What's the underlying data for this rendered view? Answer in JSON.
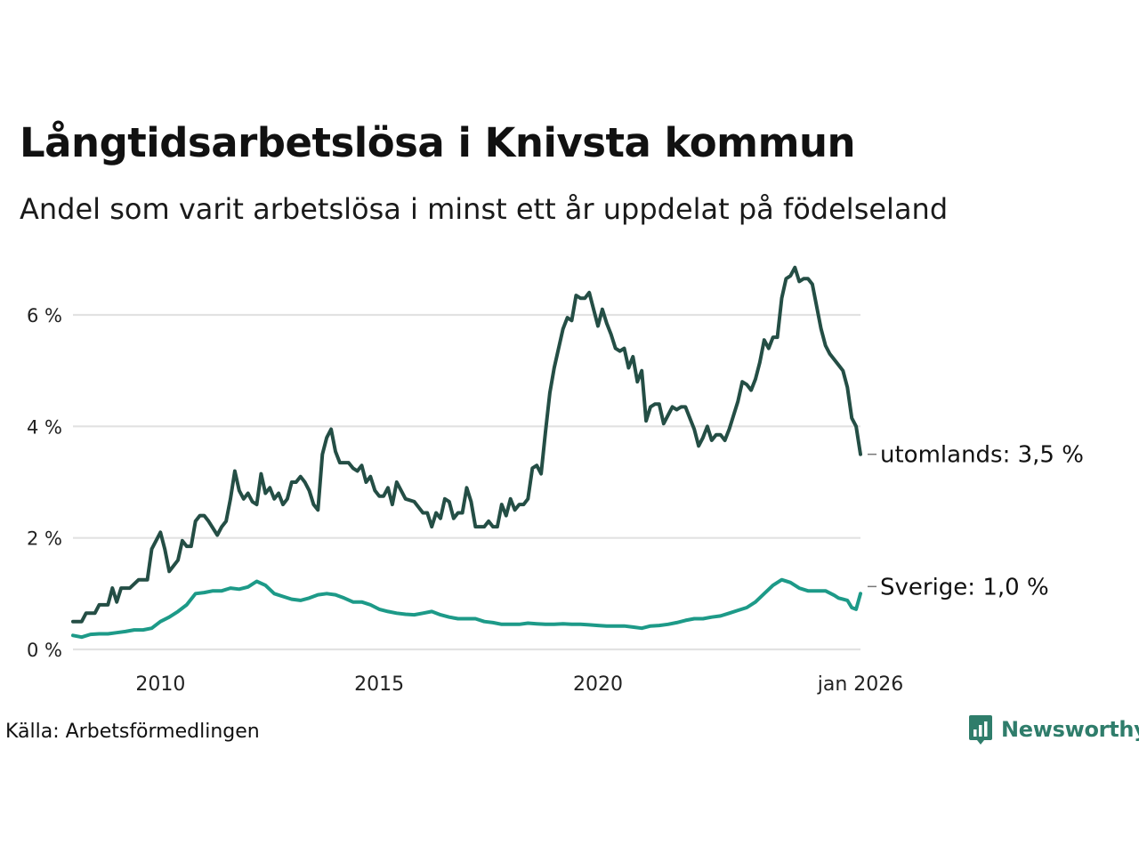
{
  "header": {
    "title": "Långtidsarbetslösa i Knivsta kommun",
    "subtitle": "Andel som varit arbetslösa i minst ett år uppdelat på födelseland"
  },
  "footer": {
    "source": "Källa: Arbetsförmedlingen",
    "brand": "Newsworthy"
  },
  "colors": {
    "utomlands": "#244e45",
    "sverige": "#1d9a88",
    "grid": "#e2e2e2",
    "brand": "#2f7d6b"
  },
  "chart_data": {
    "type": "line",
    "title": "Långtidsarbetslösa i Knivsta kommun",
    "subtitle": "Andel som varit arbetslösa i minst ett år uppdelat på födelseland",
    "xlabel": "",
    "ylabel": "",
    "x_range": [
      2008.0,
      2026.0
    ],
    "ylim": [
      0,
      7
    ],
    "y_ticks": [
      0,
      2,
      4,
      6
    ],
    "y_tick_labels": [
      "0 %",
      "2 %",
      "4 %",
      "6 %"
    ],
    "x_ticks": [
      2010,
      2015,
      2020,
      2026.0
    ],
    "x_tick_labels": [
      "2010",
      "2015",
      "2020",
      "jan 2026"
    ],
    "grid": true,
    "series": [
      {
        "name": "utomlands",
        "end_label": "utomlands: 3,5 %",
        "points": [
          [
            2008.0,
            0.5
          ],
          [
            2008.2,
            0.5
          ],
          [
            2008.3,
            0.65
          ],
          [
            2008.5,
            0.65
          ],
          [
            2008.6,
            0.8
          ],
          [
            2008.8,
            0.8
          ],
          [
            2008.9,
            1.1
          ],
          [
            2009.0,
            0.85
          ],
          [
            2009.1,
            1.1
          ],
          [
            2009.3,
            1.1
          ],
          [
            2009.5,
            1.25
          ],
          [
            2009.7,
            1.25
          ],
          [
            2009.8,
            1.8
          ],
          [
            2010.0,
            2.1
          ],
          [
            2010.1,
            1.8
          ],
          [
            2010.2,
            1.4
          ],
          [
            2010.3,
            1.5
          ],
          [
            2010.4,
            1.6
          ],
          [
            2010.5,
            1.95
          ],
          [
            2010.6,
            1.85
          ],
          [
            2010.7,
            1.85
          ],
          [
            2010.8,
            2.3
          ],
          [
            2010.9,
            2.4
          ],
          [
            2011.0,
            2.4
          ],
          [
            2011.1,
            2.3
          ],
          [
            2011.3,
            2.05
          ],
          [
            2011.4,
            2.2
          ],
          [
            2011.5,
            2.3
          ],
          [
            2011.6,
            2.7
          ],
          [
            2011.7,
            3.2
          ],
          [
            2011.8,
            2.85
          ],
          [
            2011.9,
            2.7
          ],
          [
            2012.0,
            2.8
          ],
          [
            2012.1,
            2.65
          ],
          [
            2012.2,
            2.6
          ],
          [
            2012.3,
            3.15
          ],
          [
            2012.4,
            2.8
          ],
          [
            2012.5,
            2.9
          ],
          [
            2012.6,
            2.7
          ],
          [
            2012.7,
            2.8
          ],
          [
            2012.8,
            2.6
          ],
          [
            2012.9,
            2.7
          ],
          [
            2013.0,
            3.0
          ],
          [
            2013.1,
            3.0
          ],
          [
            2013.2,
            3.1
          ],
          [
            2013.3,
            3.0
          ],
          [
            2013.4,
            2.85
          ],
          [
            2013.5,
            2.6
          ],
          [
            2013.6,
            2.5
          ],
          [
            2013.7,
            3.5
          ],
          [
            2013.8,
            3.8
          ],
          [
            2013.9,
            3.95
          ],
          [
            2014.0,
            3.55
          ],
          [
            2014.1,
            3.35
          ],
          [
            2014.3,
            3.35
          ],
          [
            2014.4,
            3.25
          ],
          [
            2014.5,
            3.2
          ],
          [
            2014.6,
            3.3
          ],
          [
            2014.7,
            3.0
          ],
          [
            2014.8,
            3.1
          ],
          [
            2014.9,
            2.85
          ],
          [
            2015.0,
            2.75
          ],
          [
            2015.1,
            2.75
          ],
          [
            2015.2,
            2.9
          ],
          [
            2015.3,
            2.6
          ],
          [
            2015.4,
            3.0
          ],
          [
            2015.5,
            2.85
          ],
          [
            2015.6,
            2.7
          ],
          [
            2015.8,
            2.65
          ],
          [
            2015.9,
            2.55
          ],
          [
            2016.0,
            2.45
          ],
          [
            2016.1,
            2.45
          ],
          [
            2016.2,
            2.2
          ],
          [
            2016.3,
            2.45
          ],
          [
            2016.4,
            2.35
          ],
          [
            2016.5,
            2.7
          ],
          [
            2016.6,
            2.65
          ],
          [
            2016.7,
            2.35
          ],
          [
            2016.8,
            2.45
          ],
          [
            2016.9,
            2.45
          ],
          [
            2017.0,
            2.9
          ],
          [
            2017.1,
            2.65
          ],
          [
            2017.2,
            2.2
          ],
          [
            2017.4,
            2.2
          ],
          [
            2017.5,
            2.3
          ],
          [
            2017.6,
            2.2
          ],
          [
            2017.7,
            2.2
          ],
          [
            2017.8,
            2.6
          ],
          [
            2017.9,
            2.4
          ],
          [
            2018.0,
            2.7
          ],
          [
            2018.1,
            2.5
          ],
          [
            2018.2,
            2.6
          ],
          [
            2018.3,
            2.6
          ],
          [
            2018.4,
            2.7
          ],
          [
            2018.5,
            3.25
          ],
          [
            2018.6,
            3.3
          ],
          [
            2018.7,
            3.15
          ],
          [
            2018.8,
            3.9
          ],
          [
            2018.9,
            4.6
          ],
          [
            2019.0,
            5.05
          ],
          [
            2019.2,
            5.75
          ],
          [
            2019.3,
            5.95
          ],
          [
            2019.4,
            5.9
          ],
          [
            2019.5,
            6.35
          ],
          [
            2019.6,
            6.3
          ],
          [
            2019.7,
            6.3
          ],
          [
            2019.8,
            6.4
          ],
          [
            2019.9,
            6.1
          ],
          [
            2020.0,
            5.8
          ],
          [
            2020.1,
            6.1
          ],
          [
            2020.2,
            5.85
          ],
          [
            2020.3,
            5.65
          ],
          [
            2020.4,
            5.4
          ],
          [
            2020.5,
            5.35
          ],
          [
            2020.6,
            5.4
          ],
          [
            2020.7,
            5.05
          ],
          [
            2020.8,
            5.25
          ],
          [
            2020.9,
            4.8
          ],
          [
            2021.0,
            5.0
          ],
          [
            2021.1,
            4.1
          ],
          [
            2021.2,
            4.35
          ],
          [
            2021.3,
            4.4
          ],
          [
            2021.4,
            4.4
          ],
          [
            2021.5,
            4.05
          ],
          [
            2021.6,
            4.2
          ],
          [
            2021.7,
            4.35
          ],
          [
            2021.8,
            4.3
          ],
          [
            2021.9,
            4.35
          ],
          [
            2022.0,
            4.35
          ],
          [
            2022.1,
            4.15
          ],
          [
            2022.2,
            3.95
          ],
          [
            2022.3,
            3.65
          ],
          [
            2022.4,
            3.8
          ],
          [
            2022.5,
            4.0
          ],
          [
            2022.6,
            3.75
          ],
          [
            2022.7,
            3.85
          ],
          [
            2022.8,
            3.85
          ],
          [
            2022.9,
            3.75
          ],
          [
            2023.0,
            3.95
          ],
          [
            2023.1,
            4.2
          ],
          [
            2023.2,
            4.45
          ],
          [
            2023.3,
            4.8
          ],
          [
            2023.4,
            4.75
          ],
          [
            2023.5,
            4.65
          ],
          [
            2023.6,
            4.85
          ],
          [
            2023.7,
            5.15
          ],
          [
            2023.8,
            5.55
          ],
          [
            2023.9,
            5.4
          ],
          [
            2024.0,
            5.6
          ],
          [
            2024.1,
            5.6
          ],
          [
            2024.2,
            6.3
          ],
          [
            2024.3,
            6.65
          ],
          [
            2024.4,
            6.7
          ],
          [
            2024.5,
            6.85
          ],
          [
            2024.6,
            6.6
          ],
          [
            2024.7,
            6.65
          ],
          [
            2024.8,
            6.65
          ],
          [
            2024.9,
            6.55
          ],
          [
            2025.0,
            6.15
          ],
          [
            2025.1,
            5.75
          ],
          [
            2025.2,
            5.45
          ],
          [
            2025.3,
            5.3
          ],
          [
            2025.4,
            5.2
          ],
          [
            2025.5,
            5.1
          ],
          [
            2025.6,
            5.0
          ],
          [
            2025.7,
            4.7
          ],
          [
            2025.8,
            4.15
          ],
          [
            2025.9,
            4.0
          ],
          [
            2026.0,
            3.5
          ]
        ]
      },
      {
        "name": "Sverige",
        "end_label": "Sverige: 1,0 %",
        "points": [
          [
            2008.0,
            0.25
          ],
          [
            2008.2,
            0.22
          ],
          [
            2008.4,
            0.27
          ],
          [
            2008.6,
            0.28
          ],
          [
            2008.8,
            0.28
          ],
          [
            2009.0,
            0.3
          ],
          [
            2009.2,
            0.32
          ],
          [
            2009.4,
            0.35
          ],
          [
            2009.6,
            0.35
          ],
          [
            2009.8,
            0.38
          ],
          [
            2010.0,
            0.5
          ],
          [
            2010.2,
            0.58
          ],
          [
            2010.4,
            0.68
          ],
          [
            2010.6,
            0.8
          ],
          [
            2010.8,
            1.0
          ],
          [
            2011.0,
            1.02
          ],
          [
            2011.2,
            1.05
          ],
          [
            2011.4,
            1.05
          ],
          [
            2011.6,
            1.1
          ],
          [
            2011.8,
            1.08
          ],
          [
            2012.0,
            1.12
          ],
          [
            2012.2,
            1.22
          ],
          [
            2012.4,
            1.15
          ],
          [
            2012.6,
            1.0
          ],
          [
            2012.8,
            0.95
          ],
          [
            2013.0,
            0.9
          ],
          [
            2013.2,
            0.88
          ],
          [
            2013.4,
            0.92
          ],
          [
            2013.6,
            0.98
          ],
          [
            2013.8,
            1.0
          ],
          [
            2014.0,
            0.98
          ],
          [
            2014.2,
            0.92
          ],
          [
            2014.4,
            0.85
          ],
          [
            2014.6,
            0.85
          ],
          [
            2014.8,
            0.8
          ],
          [
            2015.0,
            0.72
          ],
          [
            2015.2,
            0.68
          ],
          [
            2015.4,
            0.65
          ],
          [
            2015.6,
            0.63
          ],
          [
            2015.8,
            0.62
          ],
          [
            2016.0,
            0.65
          ],
          [
            2016.2,
            0.68
          ],
          [
            2016.4,
            0.62
          ],
          [
            2016.6,
            0.58
          ],
          [
            2016.8,
            0.55
          ],
          [
            2017.0,
            0.55
          ],
          [
            2017.2,
            0.55
          ],
          [
            2017.4,
            0.5
          ],
          [
            2017.6,
            0.48
          ],
          [
            2017.8,
            0.45
          ],
          [
            2018.0,
            0.45
          ],
          [
            2018.2,
            0.45
          ],
          [
            2018.4,
            0.47
          ],
          [
            2018.6,
            0.46
          ],
          [
            2018.8,
            0.45
          ],
          [
            2019.0,
            0.45
          ],
          [
            2019.2,
            0.46
          ],
          [
            2019.4,
            0.45
          ],
          [
            2019.6,
            0.45
          ],
          [
            2019.8,
            0.44
          ],
          [
            2020.0,
            0.43
          ],
          [
            2020.2,
            0.42
          ],
          [
            2020.4,
            0.42
          ],
          [
            2020.6,
            0.42
          ],
          [
            2020.8,
            0.4
          ],
          [
            2021.0,
            0.38
          ],
          [
            2021.2,
            0.42
          ],
          [
            2021.4,
            0.43
          ],
          [
            2021.6,
            0.45
          ],
          [
            2021.8,
            0.48
          ],
          [
            2022.0,
            0.52
          ],
          [
            2022.2,
            0.55
          ],
          [
            2022.4,
            0.55
          ],
          [
            2022.6,
            0.58
          ],
          [
            2022.8,
            0.6
          ],
          [
            2023.0,
            0.65
          ],
          [
            2023.2,
            0.7
          ],
          [
            2023.4,
            0.75
          ],
          [
            2023.6,
            0.85
          ],
          [
            2023.8,
            1.0
          ],
          [
            2024.0,
            1.15
          ],
          [
            2024.2,
            1.25
          ],
          [
            2024.4,
            1.2
          ],
          [
            2024.6,
            1.1
          ],
          [
            2024.8,
            1.05
          ],
          [
            2025.0,
            1.05
          ],
          [
            2025.2,
            1.05
          ],
          [
            2025.4,
            0.97
          ],
          [
            2025.5,
            0.92
          ],
          [
            2025.6,
            0.9
          ],
          [
            2025.7,
            0.88
          ],
          [
            2025.8,
            0.75
          ],
          [
            2025.9,
            0.72
          ],
          [
            2026.0,
            1.0
          ]
        ]
      }
    ]
  }
}
